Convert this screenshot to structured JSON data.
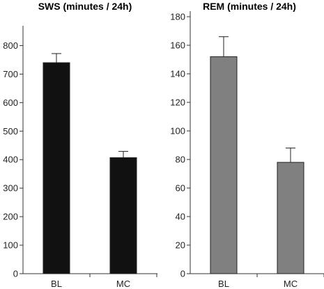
{
  "chart_data": [
    {
      "type": "bar",
      "title": "SWS (minutes / 24h)",
      "categories": [
        "BL",
        "MC"
      ],
      "values": [
        740,
        407
      ],
      "errors": [
        32,
        22
      ],
      "yticks": [
        0,
        100,
        200,
        300,
        400,
        500,
        600,
        700,
        800
      ],
      "ylim": [
        0,
        850
      ],
      "bar_color": "#111111",
      "xlabel": "",
      "ylabel": ""
    },
    {
      "type": "bar",
      "title": "REM (minutes / 24h)",
      "categories": [
        "BL",
        "MC"
      ],
      "values": [
        152,
        78
      ],
      "errors": [
        14,
        10
      ],
      "yticks": [
        0,
        20,
        40,
        60,
        80,
        100,
        120,
        140,
        160,
        180
      ],
      "ylim": [
        0,
        180
      ],
      "bar_color": "#808080",
      "xlabel": "",
      "ylabel": ""
    }
  ]
}
